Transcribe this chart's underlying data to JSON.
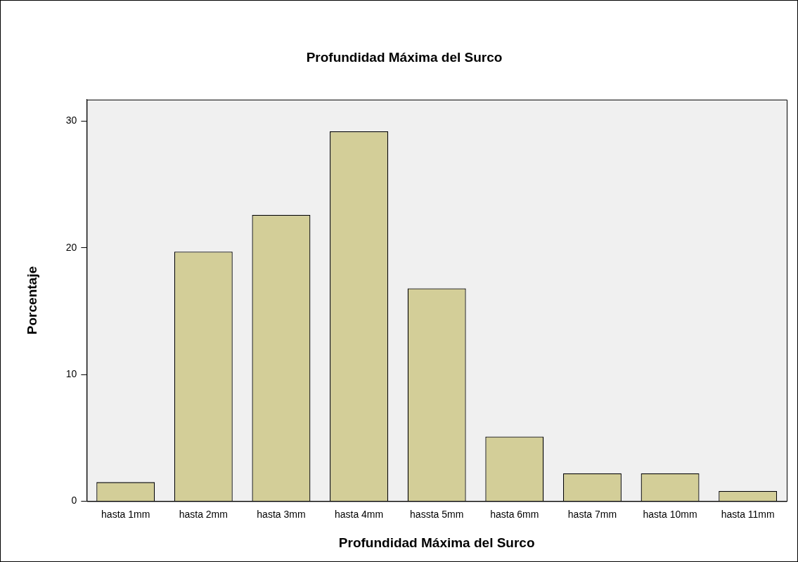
{
  "chart_data": {
    "type": "bar",
    "title": "Profundidad Máxima del Surco",
    "xlabel": "Profundidad Máxima del Surco",
    "ylabel": "Porcentaje",
    "categories": [
      "hasta 1mm",
      "hasta 2mm",
      "hasta 3mm",
      "hasta 4mm",
      "hassta 5mm",
      "hasta 6mm",
      "hasta 7mm",
      "hasta 10mm",
      "hasta 11mm"
    ],
    "values": [
      1.5,
      19.7,
      22.6,
      29.2,
      16.8,
      5.1,
      2.2,
      2.2,
      0.8
    ],
    "color": "#d3ce98",
    "ylim": [
      0,
      31.7
    ],
    "yticks": [
      0,
      10,
      20,
      30
    ],
    "grid": false,
    "legend": false
  }
}
